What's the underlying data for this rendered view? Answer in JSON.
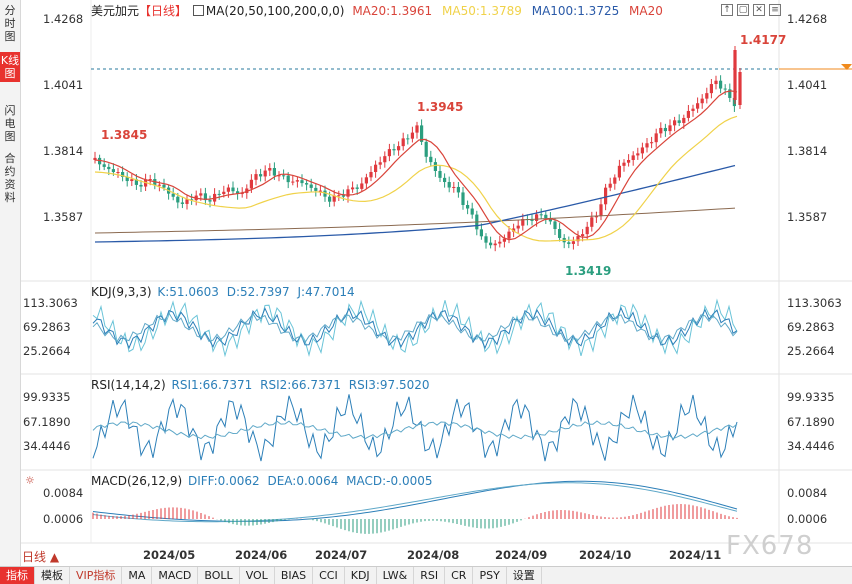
{
  "sidebar": {
    "items": [
      {
        "label": "分时图"
      },
      {
        "label": "K线图"
      },
      {
        "label": "闪电图"
      },
      {
        "label": "合约资料"
      }
    ],
    "active_index": 1
  },
  "header": {
    "symbol": "美元加元",
    "period_tag": "【日线】",
    "ma_label": "MA(20,50,100,200,0,0)",
    "ma20": "MA20:1.3961",
    "ma50": "MA50:1.3789",
    "ma100": "MA100:1.3725",
    "ma20_alt": "MA20"
  },
  "colors": {
    "up": "#e0393e",
    "down": "#2b9e7f",
    "ma20": "#d9443a",
    "ma50": "#f0d24a",
    "ma100": "#2a5aa8",
    "ma200": "#8b6a50",
    "k": "#2c7fb8",
    "d": "#5fa8c8",
    "j": "#6ac4d8"
  },
  "price_axis": {
    "labels": [
      "1.4268",
      "1.4041",
      "1.3814",
      "1.3587"
    ],
    "annotations": {
      "high": "1.4177",
      "peak_aug": "1.3945",
      "left_peak": "1.3845",
      "low": "1.3419"
    }
  },
  "kdj": {
    "title": "KDJ(9,3,3)",
    "k": "K:51.0603",
    "d": "D:52.7397",
    "j": "J:47.7014",
    "axis": [
      "113.3063",
      "69.2863",
      "25.2664"
    ]
  },
  "rsi": {
    "title": "RSI(14,14,2)",
    "rsi1": "RSI1:66.7371",
    "rsi2": "RSI2:66.7371",
    "rsi3": "RSI3:97.5020",
    "axis": [
      "99.9335",
      "67.1890",
      "34.4446"
    ]
  },
  "macd": {
    "title": "MACD(26,12,9)",
    "diff": "DIFF:0.0062",
    "dea": "DEA:0.0064",
    "macd": "MACD:-0.0005",
    "axis": [
      "0.0084",
      "0.0006"
    ]
  },
  "time_axis": [
    "2024/05",
    "2024/06",
    "2024/07",
    "2024/08",
    "2024/09",
    "2024/10",
    "2024/11"
  ],
  "period_selector": "日线 ▲",
  "bottom_tabs": [
    "指标",
    "模板",
    "VIP指标",
    "MA",
    "MACD",
    "BOLL",
    "VOL",
    "BIAS",
    "CCI",
    "KDJ",
    "LW&",
    "RSI",
    "CR",
    "PSY",
    "设置"
  ],
  "watermark": "FX678"
}
